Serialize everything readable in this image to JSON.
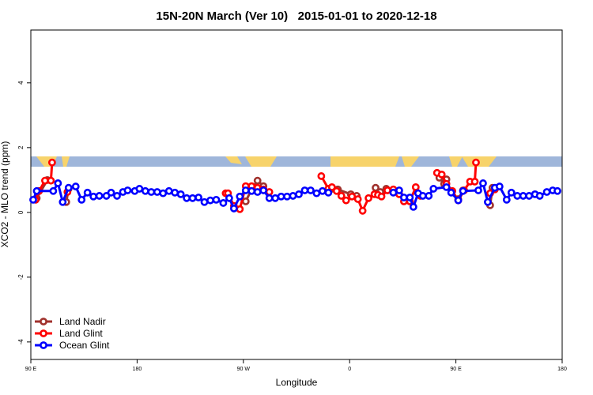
{
  "chart_data": {
    "type": "line",
    "title": "15N-20N March (Ver 10)   2015-01-01 to 2020-12-18",
    "x_label": "Longitude",
    "y_label": "XCO2 - MLO trend (ppm)",
    "xlim": [
      90,
      540
    ],
    "ylim": [
      -4.54,
      5.63
    ],
    "xticks": [
      {
        "value": 90,
        "label": "90 E"
      },
      180,
      {
        "value": 270,
        "label": "90 W"
      },
      {
        "value": 360,
        "label": "0"
      },
      {
        "value": 450,
        "label": "90 E"
      },
      {
        "value": 540,
        "label": "180"
      }
    ],
    "yticks": [
      -4,
      -2,
      0,
      2,
      4
    ],
    "legend": "bottom-left",
    "series": [
      {
        "name": "Land Nadir",
        "color": "#a0322d",
        "x": [
          95,
          104,
          null,
          120,
          122,
          null,
          272,
          277,
          282,
          287,
          null,
          345,
          350,
          361,
          366,
          null,
          382,
          386,
          391,
          null,
          436,
          440,
          442,
          null,
          452,
          456,
          null,
          479,
          481
        ],
        "values": [
          0.44,
          1.0,
          null,
          0.32,
          0.73,
          null,
          0.34,
          0.71,
          0.98,
          0.81,
          null,
          0.73,
          0.71,
          0.56,
          0.51,
          null,
          0.76,
          0.63,
          0.73,
          null,
          1.07,
          0.88,
          1.02,
          null,
          0.41,
          0.68,
          null,
          0.22,
          0.76
        ]
      },
      {
        "name": "Land Glint",
        "color": "#ff0000",
        "x": [
          94,
          97,
          102,
          107,
          108,
          null,
          121,
          null,
          255,
          257,
          262,
          267,
          272,
          277,
          282,
          287,
          292,
          null,
          336,
          342,
          345,
          349,
          353,
          357,
          362,
          367,
          371,
          376,
          381,
          384,
          387,
          392,
          397,
          402,
          406,
          411,
          416,
          420,
          null,
          434,
          438,
          442,
          447,
          452,
          457,
          462,
          466,
          467,
          null,
          479,
          483
        ],
        "values": [
          0.39,
          0.66,
          0.98,
          0.98,
          1.54,
          null,
          0.63,
          null,
          0.59,
          0.59,
          0.2,
          0.1,
          0.81,
          0.81,
          0.76,
          0.71,
          0.63,
          null,
          1.12,
          0.73,
          0.78,
          0.66,
          0.51,
          0.37,
          0.49,
          0.41,
          0.05,
          0.44,
          0.56,
          0.54,
          0.49,
          0.68,
          0.71,
          0.56,
          0.34,
          0.34,
          0.78,
          0.51,
          null,
          1.22,
          1.17,
          0.88,
          0.66,
          0.37,
          0.68,
          0.95,
          0.95,
          1.54,
          null,
          0.59,
          0.71
        ]
      },
      {
        "name": "Ocean Glint",
        "color": "#0000ff",
        "x": [
          92,
          95,
          109,
          113,
          117,
          122,
          128,
          133,
          138,
          143,
          148,
          154,
          158,
          163,
          168,
          172,
          178,
          182,
          187,
          192,
          197,
          202,
          207,
          212,
          217,
          222,
          227,
          232,
          237,
          242,
          247,
          253,
          258,
          262,
          267,
          272,
          277,
          282,
          287,
          292,
          297,
          302,
          307,
          312,
          317,
          322,
          327,
          332,
          337,
          342,
          null,
          397,
          402,
          406,
          411,
          414,
          418,
          422,
          427,
          431,
          442,
          446,
          452,
          456,
          469,
          473,
          477,
          483,
          487,
          493,
          497,
          502,
          507,
          512,
          517,
          521,
          527,
          532,
          536
        ],
        "values": [
          0.39,
          0.66,
          0.66,
          0.9,
          0.32,
          0.76,
          0.8,
          0.39,
          0.61,
          0.49,
          0.51,
          0.51,
          0.61,
          0.51,
          0.63,
          0.68,
          0.66,
          0.73,
          0.66,
          0.63,
          0.63,
          0.59,
          0.66,
          0.61,
          0.56,
          0.44,
          0.44,
          0.46,
          0.32,
          0.37,
          0.39,
          0.29,
          0.44,
          0.12,
          0.49,
          0.68,
          0.66,
          0.63,
          0.68,
          0.44,
          0.44,
          0.49,
          0.49,
          0.51,
          0.56,
          0.68,
          0.68,
          0.59,
          0.66,
          0.61,
          null,
          0.61,
          0.68,
          0.46,
          0.46,
          0.17,
          0.59,
          0.51,
          0.51,
          0.73,
          0.78,
          0.61,
          0.37,
          0.66,
          0.68,
          0.9,
          0.32,
          0.76,
          0.8,
          0.39,
          0.61,
          0.51,
          0.51,
          0.51,
          0.56,
          0.51,
          0.63,
          0.68,
          0.66
        ]
      }
    ]
  }
}
